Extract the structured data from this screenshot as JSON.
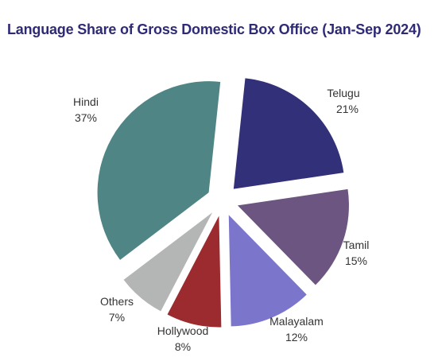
{
  "chart_data": {
    "type": "pie",
    "title": "Language Share of Gross Domestic Box Office (Jan-Sep 2024)",
    "slices": [
      {
        "label": "Telugu",
        "value": 21,
        "value_label": "21%",
        "color": "#33307a"
      },
      {
        "label": "Tamil",
        "value": 15,
        "value_label": "15%",
        "color": "#6c5580"
      },
      {
        "label": "Malayalam",
        "value": 12,
        "value_label": "12%",
        "color": "#7b75cc"
      },
      {
        "label": "Hollywood",
        "value": 8,
        "value_label": "8%",
        "color": "#9b2b2f"
      },
      {
        "label": "Others",
        "value": 7,
        "value_label": "7%",
        "color": "#b3b6b5"
      },
      {
        "label": "Hindi",
        "value": 37,
        "value_label": "37%",
        "color": "#4f8584"
      }
    ],
    "exploded": true,
    "legend": "none"
  }
}
